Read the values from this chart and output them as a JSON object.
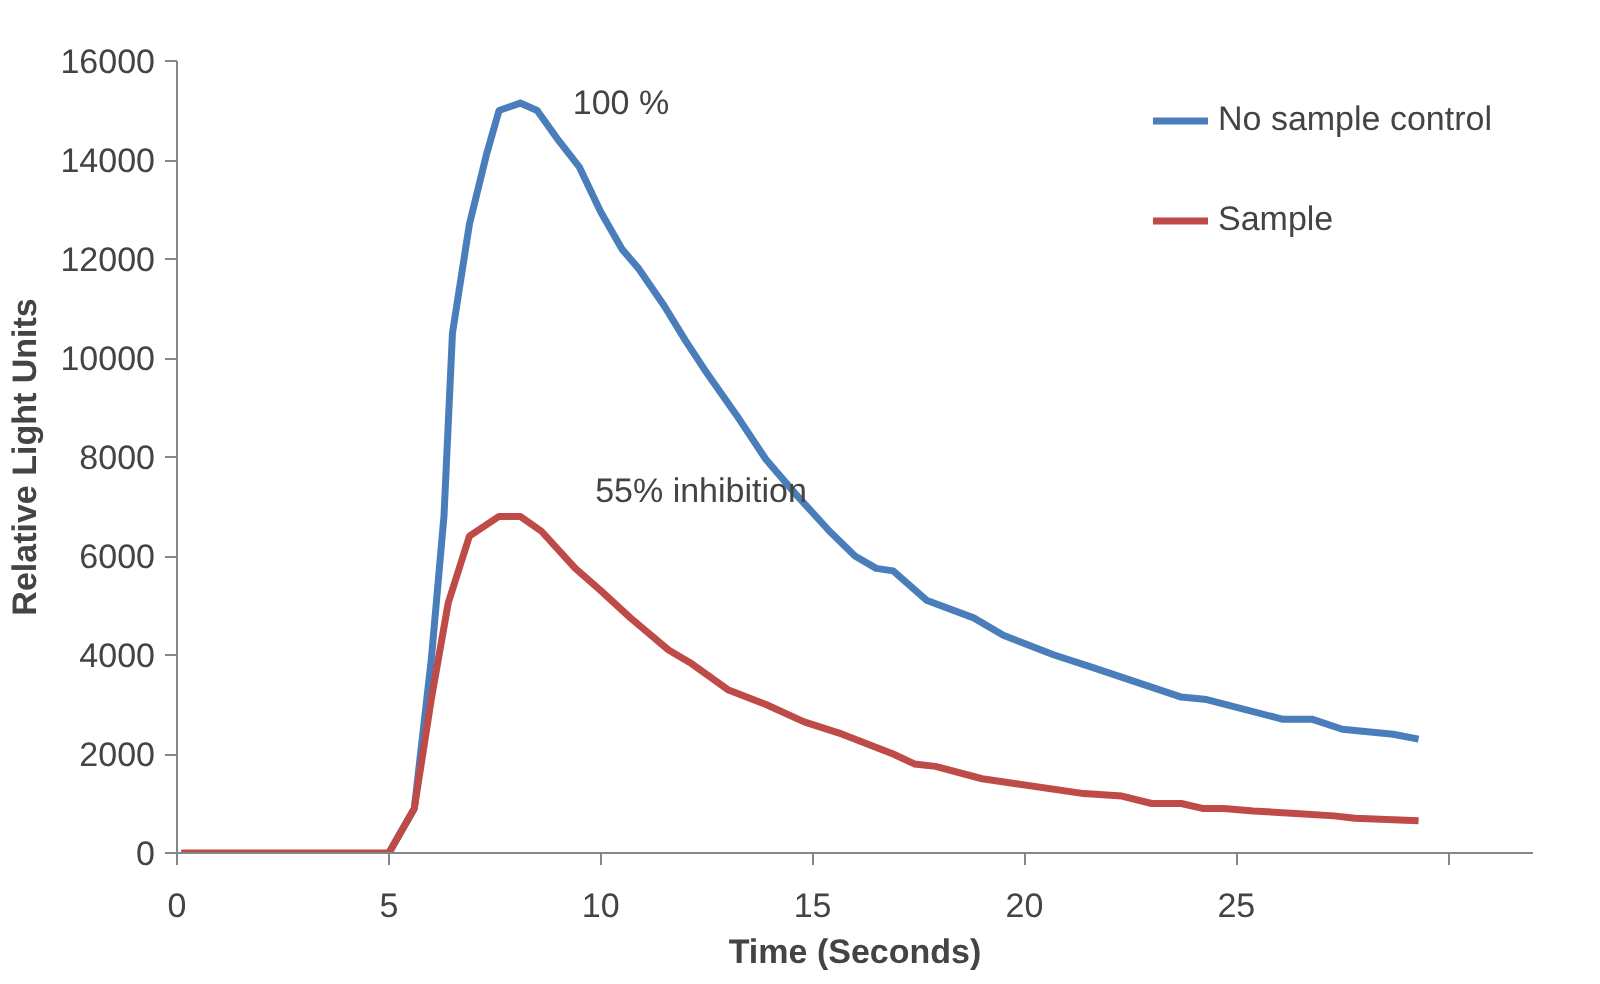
{
  "chart_data": {
    "type": "line",
    "xlabel": "Time (Seconds)",
    "ylabel": "Relative Light Units",
    "xlim": [
      0,
      32
    ],
    "xticks": [
      0,
      5,
      10,
      15,
      20,
      25,
      {
        "value": 30,
        "label": null
      }
    ],
    "ylim": [
      0,
      16000
    ],
    "yticks": [
      0,
      2000,
      4000,
      6000,
      8000,
      10000,
      12000,
      14000,
      16000
    ],
    "grid": false,
    "legend": "top right",
    "marker": "none",
    "line_style": "solid",
    "annotations": [
      "100 %",
      "55% inhibition"
    ],
    "series": [
      {
        "name": "No sample control",
        "color": "#4a7ebb",
        "x": [
          5.0,
          5.6,
          6.0,
          6.3,
          6.5,
          6.9,
          7.3,
          7.6,
          8.1,
          8.5,
          9.0,
          9.5,
          10.0,
          10.5,
          10.9,
          11.5,
          12.0,
          12.5,
          13.2,
          13.9,
          14.6,
          15.4,
          16.0,
          16.5,
          16.9,
          17.7,
          18.8,
          19.5,
          20.7,
          21.6,
          23.7,
          24.3,
          26.1,
          26.8,
          27.5,
          28.7,
          29.3
        ],
        "values": [
          0,
          900,
          3900,
          6800,
          10500,
          12700,
          14100,
          15000,
          15150,
          15000,
          14400,
          13850,
          12950,
          12200,
          11800,
          11050,
          10350,
          9700,
          8850,
          7950,
          7250,
          6500,
          6000,
          5750,
          5700,
          5100,
          4750,
          4400,
          4000,
          3750,
          3150,
          3100,
          2700,
          2700,
          2500,
          2400,
          2300
        ]
      },
      {
        "name": "Sample",
        "color": "#be4b48",
        "x": [
          0.1,
          2,
          4,
          5.0,
          5.6,
          6.0,
          6.4,
          6.9,
          7.6,
          8.1,
          8.6,
          9.4,
          10.0,
          10.7,
          11.6,
          12.1,
          13.0,
          13.9,
          14.8,
          15.7,
          16.9,
          17.4,
          17.9,
          19.0,
          19.8,
          21.4,
          22.3,
          23.0,
          23.7,
          24.2,
          24.7,
          25.4,
          26.4,
          27.3,
          27.8,
          29.3
        ],
        "values": [
          0,
          0,
          0,
          0,
          900,
          3100,
          5050,
          6400,
          6800,
          6800,
          6500,
          5750,
          5300,
          4750,
          4100,
          3850,
          3300,
          3000,
          2650,
          2400,
          2000,
          1800,
          1750,
          1500,
          1400,
          1200,
          1150,
          1000,
          1000,
          900,
          900,
          850,
          800,
          750,
          700,
          650
        ]
      }
    ]
  }
}
